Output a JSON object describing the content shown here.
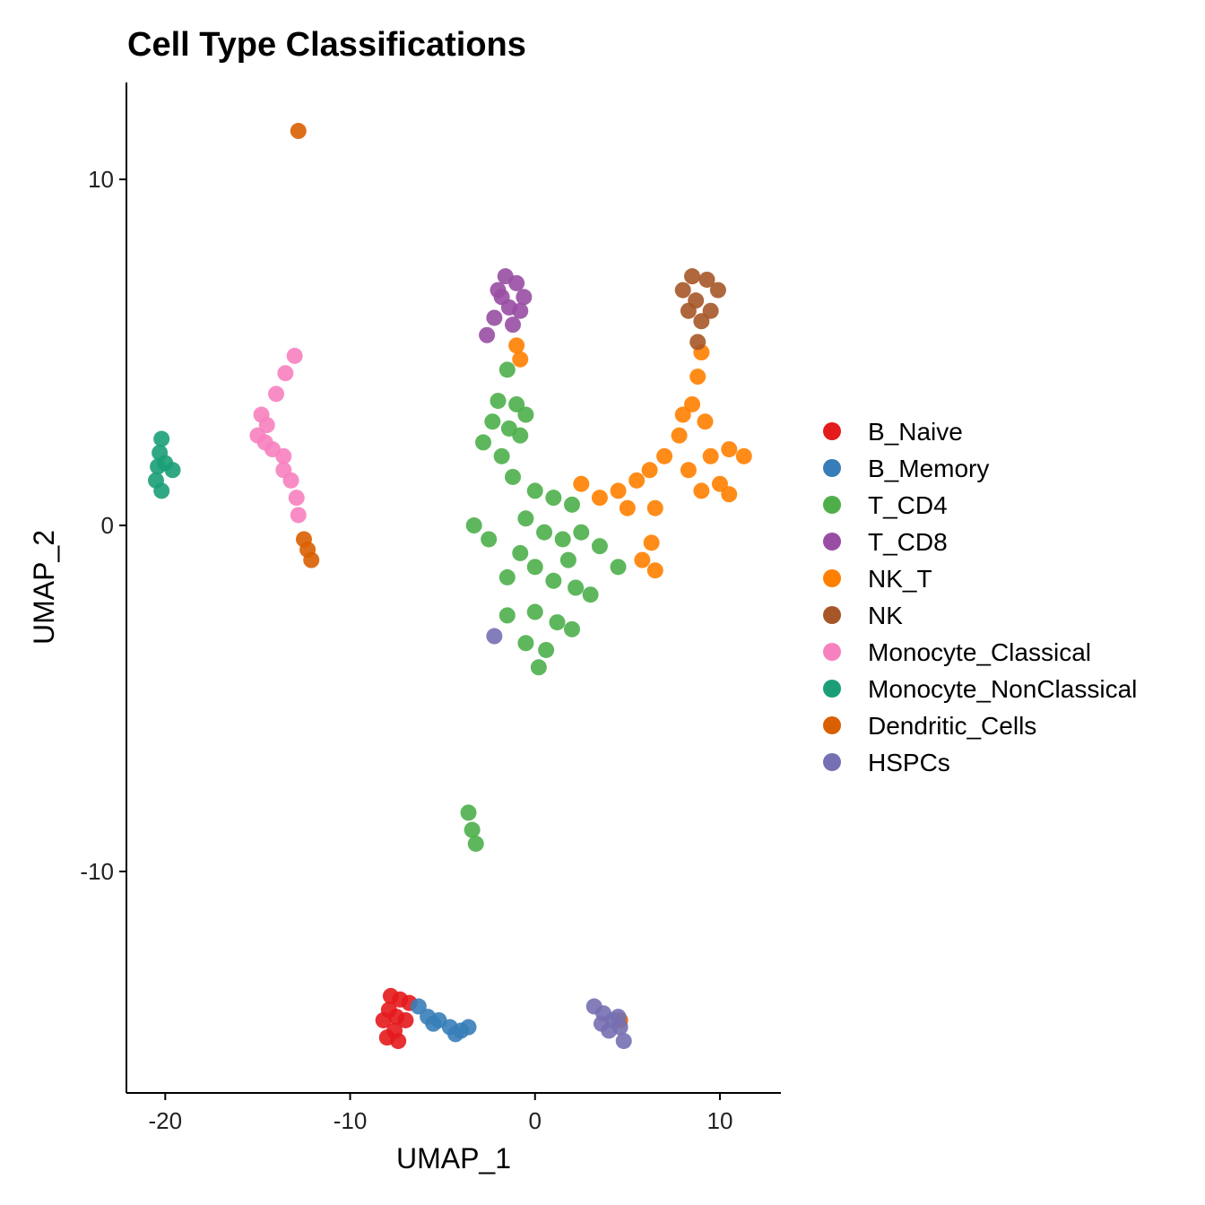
{
  "chart_data": {
    "type": "scatter",
    "title": "Cell Type Classifications",
    "xlabel": "UMAP_1",
    "ylabel": "UMAP_2",
    "xlim": [
      -22.1,
      13.3
    ],
    "ylim": [
      -16.4,
      12.8
    ],
    "xticks": [
      -20,
      -10,
      0,
      10
    ],
    "yticks": [
      -10,
      0,
      10
    ],
    "grid": false,
    "legend_position": "right",
    "series": [
      {
        "name": "B_Naive",
        "color": "#E41A1C",
        "points": [
          [
            -7.9,
            -14.0
          ],
          [
            -7.3,
            -13.7
          ],
          [
            -7.0,
            -14.3
          ],
          [
            -7.6,
            -14.6
          ],
          [
            -8.2,
            -14.3
          ],
          [
            -7.4,
            -14.9
          ],
          [
            -6.8,
            -13.8
          ],
          [
            -7.8,
            -13.6
          ],
          [
            -8.0,
            -14.8
          ],
          [
            -7.5,
            -14.2
          ]
        ]
      },
      {
        "name": "B_Memory",
        "color": "#377EB8",
        "points": [
          [
            -6.3,
            -13.9
          ],
          [
            -5.8,
            -14.2
          ],
          [
            -5.2,
            -14.3
          ],
          [
            -4.6,
            -14.5
          ],
          [
            -4.0,
            -14.6
          ],
          [
            -3.6,
            -14.5
          ],
          [
            -5.5,
            -14.4
          ],
          [
            -4.3,
            -14.7
          ]
        ]
      },
      {
        "name": "T_CD4",
        "color": "#4DAF4A",
        "points": [
          [
            -1.5,
            4.5
          ],
          [
            -2.0,
            3.6
          ],
          [
            -1.0,
            3.5
          ],
          [
            -0.5,
            3.2
          ],
          [
            -2.8,
            2.4
          ],
          [
            -1.8,
            2.0
          ],
          [
            -0.8,
            2.6
          ],
          [
            -1.2,
            1.4
          ],
          [
            -2.3,
            3.0
          ],
          [
            -1.4,
            2.8
          ],
          [
            0.0,
            1.0
          ],
          [
            1.0,
            0.8
          ],
          [
            2.0,
            0.6
          ],
          [
            -0.5,
            0.2
          ],
          [
            0.5,
            -0.2
          ],
          [
            1.5,
            -0.4
          ],
          [
            2.5,
            -0.2
          ],
          [
            3.5,
            -0.6
          ],
          [
            4.5,
            -1.2
          ],
          [
            -1.5,
            -1.5
          ],
          [
            0,
            -1.2
          ],
          [
            1.0,
            -1.6
          ],
          [
            2.2,
            -1.8
          ],
          [
            3.0,
            -2.0
          ],
          [
            -1.5,
            -2.6
          ],
          [
            0,
            -2.5
          ],
          [
            1.2,
            -2.8
          ],
          [
            2.0,
            -3.0
          ],
          [
            -0.5,
            -3.4
          ],
          [
            0.6,
            -3.6
          ],
          [
            0.2,
            -4.1
          ],
          [
            -0.8,
            -0.8
          ],
          [
            1.8,
            -1.0
          ],
          [
            -3.3,
            0.0
          ],
          [
            -2.5,
            -0.4
          ],
          [
            -3.6,
            -8.3
          ],
          [
            -3.4,
            -8.8
          ],
          [
            -3.2,
            -9.2
          ]
        ]
      },
      {
        "name": "T_CD8",
        "color": "#984EA3",
        "points": [
          [
            -1.6,
            7.2
          ],
          [
            -1.0,
            7.0
          ],
          [
            -0.6,
            6.6
          ],
          [
            -2.0,
            6.8
          ],
          [
            -1.4,
            6.3
          ],
          [
            -2.2,
            6.0
          ],
          [
            -2.6,
            5.5
          ],
          [
            -1.2,
            5.8
          ],
          [
            -0.8,
            6.2
          ],
          [
            -1.8,
            6.6
          ]
        ]
      },
      {
        "name": "NK_T",
        "color": "#FF7F00",
        "points": [
          [
            -1.0,
            5.2
          ],
          [
            -0.8,
            4.8
          ],
          [
            2.5,
            1.2
          ],
          [
            3.5,
            0.8
          ],
          [
            4.5,
            1.0
          ],
          [
            5.5,
            1.3
          ],
          [
            5.0,
            0.5
          ],
          [
            6.2,
            1.6
          ],
          [
            6.5,
            0.5
          ],
          [
            6.3,
            -0.5
          ],
          [
            6.5,
            -1.3
          ],
          [
            5.8,
            -1.0
          ],
          [
            7.0,
            2.0
          ],
          [
            7.8,
            2.6
          ],
          [
            8.5,
            3.5
          ],
          [
            8.8,
            4.3
          ],
          [
            9.2,
            3.0
          ],
          [
            9.5,
            2.0
          ],
          [
            10.5,
            2.2
          ],
          [
            11.3,
            2.0
          ],
          [
            10.0,
            1.2
          ],
          [
            9.0,
            1.0
          ],
          [
            10.5,
            0.9
          ],
          [
            8.3,
            1.6
          ],
          [
            9.0,
            5.0
          ],
          [
            8.0,
            3.2
          ]
        ]
      },
      {
        "name": "NK",
        "color": "#A65628",
        "points": [
          [
            8.5,
            7.2
          ],
          [
            9.3,
            7.1
          ],
          [
            9.9,
            6.8
          ],
          [
            8.0,
            6.8
          ],
          [
            8.7,
            6.5
          ],
          [
            9.5,
            6.2
          ],
          [
            8.3,
            6.2
          ],
          [
            9.0,
            5.9
          ],
          [
            8.8,
            5.3
          ]
        ]
      },
      {
        "name": "Monocyte_Classical",
        "color": "#F781BF",
        "points": [
          [
            -13.0,
            4.9
          ],
          [
            -13.5,
            4.4
          ],
          [
            -14.0,
            3.8
          ],
          [
            -14.8,
            3.2
          ],
          [
            -15.0,
            2.6
          ],
          [
            -14.5,
            2.9
          ],
          [
            -14.2,
            2.2
          ],
          [
            -13.6,
            2.0
          ],
          [
            -13.2,
            1.3
          ],
          [
            -12.9,
            0.8
          ],
          [
            -12.8,
            0.3
          ],
          [
            -13.6,
            1.6
          ],
          [
            -14.6,
            2.4
          ]
        ]
      },
      {
        "name": "Monocyte_NonClassical",
        "color": "#1B9E77",
        "points": [
          [
            -20.2,
            2.5
          ],
          [
            -20.3,
            2.1
          ],
          [
            -20.4,
            1.7
          ],
          [
            -20.5,
            1.3
          ],
          [
            -20.0,
            1.8
          ],
          [
            -19.6,
            1.6
          ],
          [
            -20.2,
            1.0
          ]
        ]
      },
      {
        "name": "Dendritic_Cells",
        "color": "#D95F02",
        "points": [
          [
            -12.8,
            11.4
          ],
          [
            -12.5,
            -0.4
          ],
          [
            -12.3,
            -0.7
          ],
          [
            -12.1,
            -1.0
          ],
          [
            4.6,
            -14.3
          ]
        ]
      },
      {
        "name": "HSPCs",
        "color": "#7570B3",
        "points": [
          [
            3.2,
            -13.9
          ],
          [
            3.7,
            -14.1
          ],
          [
            4.2,
            -14.3
          ],
          [
            4.6,
            -14.5
          ],
          [
            4.8,
            -14.9
          ],
          [
            4.0,
            -14.6
          ],
          [
            3.6,
            -14.4
          ],
          [
            4.5,
            -14.2
          ],
          [
            -2.2,
            -3.2
          ]
        ]
      }
    ]
  }
}
